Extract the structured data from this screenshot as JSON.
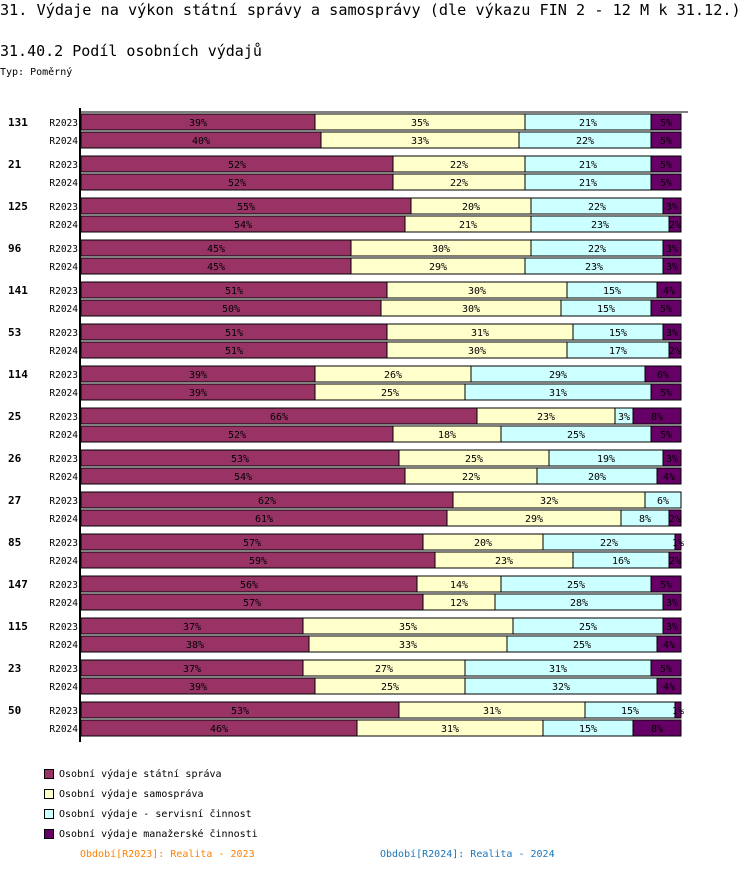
{
  "header": {
    "title": "31. Výdaje na výkon státní správy a samosprávy (dle výkazu FIN 2 - 12 M k 31.12.)",
    "subtitle": "31.40.2 Podíl osobních výdajů",
    "type_label": "Typ: Poměrný"
  },
  "chart_data": {
    "type": "bar",
    "orientation": "horizontal",
    "stacked": "percent",
    "xlim": [
      0,
      100
    ],
    "unit": "%",
    "series": [
      {
        "name": "Osobní výdaje státní správa",
        "color": "#993366"
      },
      {
        "name": "Osobní výdaje samospráva",
        "color": "#ffffcc"
      },
      {
        "name": "Osobní výdaje - servisní činnost",
        "color": "#ccffff"
      },
      {
        "name": "Osobní výdaje manažerské činnosti",
        "color": "#660066"
      }
    ],
    "groups": [
      {
        "label": "131",
        "rows": [
          {
            "period": "R2023",
            "values": [
              39,
              35,
              21,
              5
            ]
          },
          {
            "period": "R2024",
            "values": [
              40,
              33,
              22,
              5
            ]
          }
        ]
      },
      {
        "label": "21",
        "rows": [
          {
            "period": "R2023",
            "values": [
              52,
              22,
              21,
              5
            ]
          },
          {
            "period": "R2024",
            "values": [
              52,
              22,
              21,
              5
            ]
          }
        ]
      },
      {
        "label": "125",
        "rows": [
          {
            "period": "R2023",
            "values": [
              55,
              20,
              22,
              3
            ]
          },
          {
            "period": "R2024",
            "values": [
              54,
              21,
              23,
              2
            ]
          }
        ]
      },
      {
        "label": "96",
        "rows": [
          {
            "period": "R2023",
            "values": [
              45,
              30,
              22,
              3
            ]
          },
          {
            "period": "R2024",
            "values": [
              45,
              29,
              23,
              3
            ]
          }
        ]
      },
      {
        "label": "141",
        "rows": [
          {
            "period": "R2023",
            "values": [
              51,
              30,
              15,
              4
            ]
          },
          {
            "period": "R2024",
            "values": [
              50,
              30,
              15,
              5
            ]
          }
        ]
      },
      {
        "label": "53",
        "rows": [
          {
            "period": "R2023",
            "values": [
              51,
              31,
              15,
              3
            ]
          },
          {
            "period": "R2024",
            "values": [
              51,
              30,
              17,
              2
            ]
          }
        ]
      },
      {
        "label": "114",
        "rows": [
          {
            "period": "R2023",
            "values": [
              39,
              26,
              29,
              6
            ]
          },
          {
            "period": "R2024",
            "values": [
              39,
              25,
              31,
              5
            ]
          }
        ]
      },
      {
        "label": "25",
        "rows": [
          {
            "period": "R2023",
            "values": [
              66,
              23,
              3,
              8
            ]
          },
          {
            "period": "R2024",
            "values": [
              52,
              18,
              25,
              5
            ]
          }
        ]
      },
      {
        "label": "26",
        "rows": [
          {
            "period": "R2023",
            "values": [
              53,
              25,
              19,
              3
            ]
          },
          {
            "period": "R2024",
            "values": [
              54,
              22,
              20,
              4
            ]
          }
        ]
      },
      {
        "label": "27",
        "rows": [
          {
            "period": "R2023",
            "values": [
              62,
              32,
              6,
              0
            ]
          },
          {
            "period": "R2024",
            "values": [
              61,
              29,
              8,
              2
            ]
          }
        ]
      },
      {
        "label": "85",
        "rows": [
          {
            "period": "R2023",
            "values": [
              57,
              20,
              22,
              1
            ]
          },
          {
            "period": "R2024",
            "values": [
              59,
              23,
              16,
              2
            ]
          }
        ]
      },
      {
        "label": "147",
        "rows": [
          {
            "period": "R2023",
            "values": [
              56,
              14,
              25,
              5
            ]
          },
          {
            "period": "R2024",
            "values": [
              57,
              12,
              28,
              3
            ]
          }
        ]
      },
      {
        "label": "115",
        "rows": [
          {
            "period": "R2023",
            "values": [
              37,
              35,
              25,
              3
            ]
          },
          {
            "period": "R2024",
            "values": [
              38,
              33,
              25,
              4
            ]
          }
        ]
      },
      {
        "label": "23",
        "rows": [
          {
            "period": "R2023",
            "values": [
              37,
              27,
              31,
              5
            ]
          },
          {
            "period": "R2024",
            "values": [
              39,
              25,
              32,
              4
            ]
          }
        ]
      },
      {
        "label": "50",
        "rows": [
          {
            "period": "R2023",
            "values": [
              53,
              31,
              15,
              1
            ]
          },
          {
            "period": "R2024",
            "values": [
              46,
              31,
              15,
              8
            ]
          }
        ]
      }
    ],
    "legend_placement": "bottom-left"
  },
  "footer": {
    "period_2023": "Období[R2023]: Realita - 2023",
    "period_2023_color": "#ff8000",
    "period_2024": "Období[R2024]: Realita - 2024",
    "period_2024_color": "#1a75bb"
  }
}
